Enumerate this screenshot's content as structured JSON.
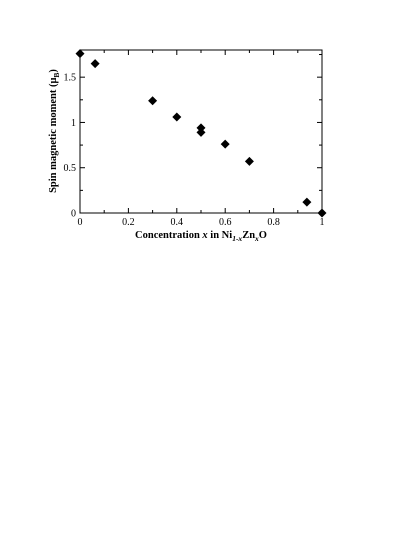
{
  "chart_data": {
    "type": "scatter",
    "xlabel": {
      "prefix": "Concentration ",
      "var": "x",
      "mid": " in Ni",
      "sub1": "1-x",
      "mid2": "Zn",
      "sub2": "x",
      "suffix": "O"
    },
    "ylabel": {
      "prefix": "Spin magnetic moment (",
      "mu": "μ",
      "sub": "B",
      "suffix": ")"
    },
    "xlim": [
      0,
      1
    ],
    "ylim": [
      0,
      1.8
    ],
    "xticks": [
      0,
      0.2,
      0.4,
      0.6,
      0.8,
      1
    ],
    "xtick_labels": [
      "0",
      "0.2",
      "0.4",
      "0.6",
      "0.8",
      "1"
    ],
    "yticks": [
      0,
      0.5,
      1,
      1.5
    ],
    "ytick_labels": [
      "0",
      "0.5",
      "1",
      "1.5"
    ],
    "grid": false,
    "marker": "diamond",
    "marker_color": "#000000",
    "series": [
      {
        "points": [
          {
            "x": 0.0,
            "y": 1.76
          },
          {
            "x": 0.0625,
            "y": 1.65
          },
          {
            "x": 0.3,
            "y": 1.24
          },
          {
            "x": 0.4,
            "y": 1.06
          },
          {
            "x": 0.5,
            "y": 0.94
          },
          {
            "x": 0.5,
            "y": 0.89
          },
          {
            "x": 0.6,
            "y": 0.76
          },
          {
            "x": 0.7,
            "y": 0.57
          },
          {
            "x": 0.9375,
            "y": 0.12
          },
          {
            "x": 1.0,
            "y": 0.0
          }
        ]
      }
    ]
  }
}
